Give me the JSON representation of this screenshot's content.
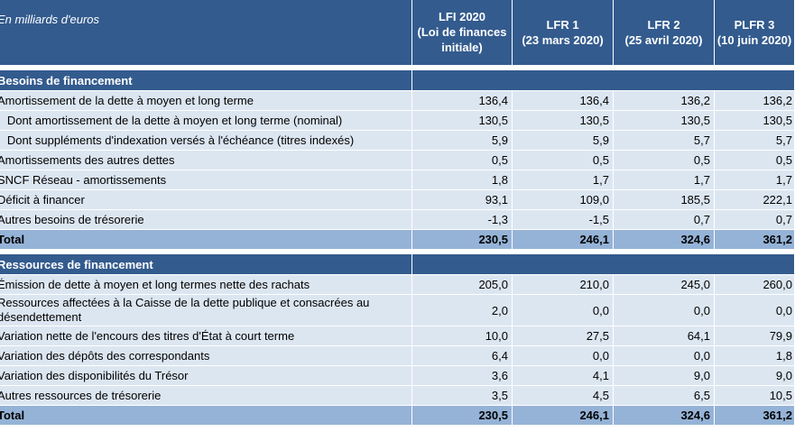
{
  "header": {
    "unit": "En milliards d'euros",
    "columns": [
      "LFI 2020\n(Loi de finances\ninitiale)",
      "LFR 1\n(23 mars 2020)",
      "LFR 2\n(25 avril 2020)",
      "PLFR 3\n(10 juin 2020)"
    ]
  },
  "sections": [
    {
      "title": "Besoins de financement",
      "rows": [
        {
          "label": "Amortissement de la dette à moyen et long terme",
          "values": [
            "136,4",
            "136,4",
            "136,2",
            "136,2"
          ]
        },
        {
          "label": "   Dont amortissement de la dette à moyen et long terme (nominal)",
          "values": [
            "130,5",
            "130,5",
            "130,5",
            "130,5"
          ]
        },
        {
          "label": "   Dont suppléments d'indexation versés à l'échéance (titres indexés)",
          "values": [
            "5,9",
            "5,9",
            "5,7",
            "5,7"
          ]
        },
        {
          "label": "Amortissements des autres dettes",
          "values": [
            "0,5",
            "0,5",
            "0,5",
            "0,5"
          ]
        },
        {
          "label": "SNCF Réseau - amortissements",
          "values": [
            "1,8",
            "1,7",
            "1,7",
            "1,7"
          ]
        },
        {
          "label": "Déficit à financer",
          "values": [
            "93,1",
            "109,0",
            "185,5",
            "222,1"
          ]
        },
        {
          "label": "Autres besoins de trésorerie",
          "values": [
            "-1,3",
            "-1,5",
            "0,7",
            "0,7"
          ]
        }
      ],
      "total": {
        "label": "Total",
        "values": [
          "230,5",
          "246,1",
          "324,6",
          "361,2"
        ]
      }
    },
    {
      "title": "Ressources de financement",
      "rows": [
        {
          "label": "Émission de dette à moyen et long termes nette des rachats",
          "values": [
            "205,0",
            "210,0",
            "245,0",
            "260,0"
          ]
        },
        {
          "label": "Ressources affectées à la Caisse de la dette publique et consacrées au\ndésendettement",
          "values": [
            "2,0",
            "0,0",
            "0,0",
            "0,0"
          ],
          "tall": true
        },
        {
          "label": "Variation nette de l'encours des titres d'État à court terme",
          "values": [
            "10,0",
            "27,5",
            "64,1",
            "79,9"
          ]
        },
        {
          "label": "Variation des dépôts des correspondants",
          "values": [
            "6,4",
            "0,0",
            "0,0",
            "1,8"
          ]
        },
        {
          "label": "Variation des disponibilités du Trésor",
          "values": [
            "3,6",
            "4,1",
            "9,0",
            "9,0"
          ]
        },
        {
          "label": "Autres ressources de trésorerie",
          "values": [
            "3,5",
            "4,5",
            "6,5",
            "10,5"
          ]
        }
      ],
      "total": {
        "label": "Total",
        "values": [
          "230,5",
          "246,1",
          "324,6",
          "361,2"
        ]
      }
    }
  ]
}
